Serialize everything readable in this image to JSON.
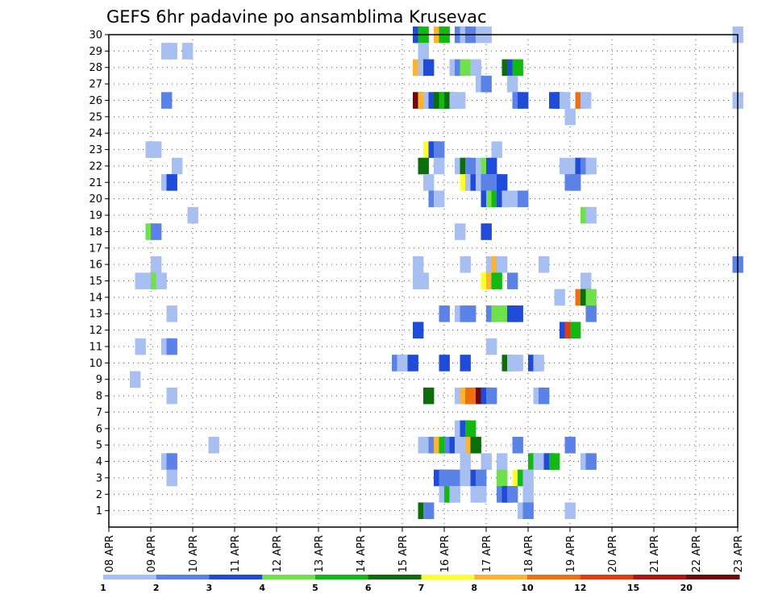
{
  "chart_data": {
    "type": "heatmap",
    "title": "GEFS 6hr padavine po ansamblima Krusevac",
    "xlabel": "",
    "ylabel": "",
    "x_tick_labels": [
      "08 APR",
      "09 APR",
      "10 APR",
      "11 APR",
      "12 APR",
      "13 APR",
      "14 APR",
      "15 APR",
      "16 APR",
      "17 APR",
      "18 APR",
      "19 APR",
      "20 APR",
      "21 APR",
      "22 APR",
      "23 APR"
    ],
    "x_range_days": [
      0,
      15
    ],
    "y_tick_labels": [
      "1",
      "2",
      "3",
      "4",
      "5",
      "6",
      "7",
      "8",
      "9",
      "10",
      "11",
      "12",
      "13",
      "14",
      "15",
      "16",
      "17",
      "18",
      "19",
      "20",
      "21",
      "22",
      "23",
      "24",
      "25",
      "26",
      "27",
      "28",
      "29",
      "30"
    ],
    "y_range": [
      0,
      30
    ],
    "grid": true,
    "colorbar": {
      "labels": [
        "1",
        "2",
        "3",
        "4",
        "5",
        "6",
        "7",
        "8",
        "10",
        "12",
        "15",
        "20"
      ],
      "colors": [
        "#a8bff2",
        "#5b82e6",
        "#1e4bd8",
        "#6fe24b",
        "#12b912",
        "#0b6e0b",
        "#ffff2b",
        "#ffb431",
        "#f07010",
        "#e03d12",
        "#b21414",
        "#6e0a0a"
      ]
    },
    "cells": [
      {
        "m": 30,
        "t": 14.5,
        "v": 3
      },
      {
        "m": 30,
        "t": 14.75,
        "v": 5
      },
      {
        "m": 30,
        "t": 15.5,
        "v": 8
      },
      {
        "m": 30,
        "t": 15.75,
        "v": 5
      },
      {
        "m": 30,
        "t": 16.5,
        "v": 2
      },
      {
        "m": 30,
        "t": 16.75,
        "v": 1
      },
      {
        "m": 30,
        "t": 17,
        "v": 2
      },
      {
        "m": 30,
        "t": 17.5,
        "v": 1
      },
      {
        "m": 30,
        "t": 17.75,
        "v": 1
      },
      {
        "m": 30,
        "t": 29.75,
        "v": 1
      },
      {
        "m": 29,
        "t": 2.5,
        "v": 1
      },
      {
        "m": 29,
        "t": 2.75,
        "v": 1
      },
      {
        "m": 29,
        "t": 3.5,
        "v": 1
      },
      {
        "m": 29,
        "t": 14.75,
        "v": 1
      },
      {
        "m": 28,
        "t": 14.5,
        "v": 8
      },
      {
        "m": 28,
        "t": 14.75,
        "v": 1
      },
      {
        "m": 28,
        "t": 15,
        "v": 3
      },
      {
        "m": 28,
        "t": 16.25,
        "v": 1
      },
      {
        "m": 28,
        "t": 16.5,
        "v": 2
      },
      {
        "m": 28,
        "t": 16.75,
        "v": 4
      },
      {
        "m": 28,
        "t": 17.25,
        "v": 1
      },
      {
        "m": 28,
        "t": 18.75,
        "v": 6
      },
      {
        "m": 28,
        "t": 19,
        "v": 3
      },
      {
        "m": 28,
        "t": 19.25,
        "v": 5
      },
      {
        "m": 27,
        "t": 17.5,
        "v": 1
      },
      {
        "m": 27,
        "t": 17.75,
        "v": 2
      },
      {
        "m": 27,
        "t": 19,
        "v": 1
      },
      {
        "m": 26,
        "t": 2.5,
        "v": 2
      },
      {
        "m": 26,
        "t": 14.5,
        "v": 20
      },
      {
        "m": 26,
        "t": 14.75,
        "v": 8
      },
      {
        "m": 26,
        "t": 15,
        "v": 1
      },
      {
        "m": 26,
        "t": 15.25,
        "v": 3
      },
      {
        "m": 26,
        "t": 15.5,
        "v": 6
      },
      {
        "m": 26,
        "t": 15.75,
        "v": 5
      },
      {
        "m": 26,
        "t": 16,
        "v": 6
      },
      {
        "m": 26,
        "t": 16.25,
        "v": 1
      },
      {
        "m": 26,
        "t": 16.5,
        "v": 1
      },
      {
        "m": 26,
        "t": 19.25,
        "v": 2
      },
      {
        "m": 26,
        "t": 19.5,
        "v": 3
      },
      {
        "m": 26,
        "t": 21,
        "v": 3
      },
      {
        "m": 26,
        "t": 21.25,
        "v": 3
      },
      {
        "m": 26,
        "t": 21.5,
        "v": 1
      },
      {
        "m": 26,
        "t": 22.25,
        "v": 10
      },
      {
        "m": 26,
        "t": 22.5,
        "v": 1
      },
      {
        "m": 26,
        "t": 29.75,
        "v": 1
      },
      {
        "m": 25,
        "t": 21.75,
        "v": 1
      },
      {
        "m": 23,
        "t": 1.75,
        "v": 1
      },
      {
        "m": 23,
        "t": 2,
        "v": 1
      },
      {
        "m": 23,
        "t": 15,
        "v": 7
      },
      {
        "m": 23,
        "t": 15.25,
        "v": 3
      },
      {
        "m": 23,
        "t": 15.5,
        "v": 2
      },
      {
        "m": 23,
        "t": 18.25,
        "v": 1
      },
      {
        "m": 22,
        "t": 3,
        "v": 1
      },
      {
        "m": 22,
        "t": 14.75,
        "v": 6
      },
      {
        "m": 22,
        "t": 15.5,
        "v": 1
      },
      {
        "m": 22,
        "t": 16.5,
        "v": 1
      },
      {
        "m": 22,
        "t": 16.75,
        "v": 6
      },
      {
        "m": 22,
        "t": 17,
        "v": 2
      },
      {
        "m": 22,
        "t": 17.5,
        "v": 1
      },
      {
        "m": 22,
        "t": 17.75,
        "v": 4
      },
      {
        "m": 22,
        "t": 18,
        "v": 3
      },
      {
        "m": 22,
        "t": 21.5,
        "v": 1
      },
      {
        "m": 22,
        "t": 22,
        "v": 1
      },
      {
        "m": 22,
        "t": 22.25,
        "v": 3
      },
      {
        "m": 22,
        "t": 22.5,
        "v": 2
      },
      {
        "m": 22,
        "t": 22.75,
        "v": 1
      },
      {
        "m": 21,
        "t": 2.5,
        "v": 1
      },
      {
        "m": 21,
        "t": 2.75,
        "v": 3
      },
      {
        "m": 21,
        "t": 15,
        "v": 1
      },
      {
        "m": 21,
        "t": 16.75,
        "v": 7
      },
      {
        "m": 21,
        "t": 17,
        "v": 1
      },
      {
        "m": 21,
        "t": 17.25,
        "v": 3
      },
      {
        "m": 21,
        "t": 17.5,
        "v": 1
      },
      {
        "m": 21,
        "t": 17.75,
        "v": 2
      },
      {
        "m": 21,
        "t": 18,
        "v": 2
      },
      {
        "m": 21,
        "t": 18.25,
        "v": 2
      },
      {
        "m": 21,
        "t": 18.5,
        "v": 3
      },
      {
        "m": 21,
        "t": 21.75,
        "v": 2
      },
      {
        "m": 21,
        "t": 22,
        "v": 2
      },
      {
        "m": 20,
        "t": 15.25,
        "v": 2
      },
      {
        "m": 20,
        "t": 15.5,
        "v": 1
      },
      {
        "m": 20,
        "t": 17.75,
        "v": 3
      },
      {
        "m": 20,
        "t": 18,
        "v": 4
      },
      {
        "m": 20,
        "t": 18.25,
        "v": 5
      },
      {
        "m": 20,
        "t": 18.5,
        "v": 3
      },
      {
        "m": 20,
        "t": 18.75,
        "v": 1
      },
      {
        "m": 20,
        "t": 19,
        "v": 1
      },
      {
        "m": 20,
        "t": 19.25,
        "v": 1
      },
      {
        "m": 20,
        "t": 19.5,
        "v": 2
      },
      {
        "m": 19,
        "t": 3.75,
        "v": 1
      },
      {
        "m": 19,
        "t": 22.5,
        "v": 4
      },
      {
        "m": 19,
        "t": 22.75,
        "v": 1
      },
      {
        "m": 18,
        "t": 1.75,
        "v": 4
      },
      {
        "m": 18,
        "t": 2,
        "v": 2
      },
      {
        "m": 18,
        "t": 16.5,
        "v": 1
      },
      {
        "m": 18,
        "t": 17.75,
        "v": 3
      },
      {
        "m": 16,
        "t": 2,
        "v": 1
      },
      {
        "m": 16,
        "t": 14.5,
        "v": 1
      },
      {
        "m": 16,
        "t": 16.75,
        "v": 1
      },
      {
        "m": 16,
        "t": 18,
        "v": 1
      },
      {
        "m": 16,
        "t": 18.25,
        "v": 8
      },
      {
        "m": 16,
        "t": 18.5,
        "v": 1
      },
      {
        "m": 16,
        "t": 20.5,
        "v": 1
      },
      {
        "m": 16,
        "t": 29.75,
        "v": 2
      },
      {
        "m": 15,
        "t": 1.25,
        "v": 1
      },
      {
        "m": 15,
        "t": 1.75,
        "v": 1
      },
      {
        "m": 15,
        "t": 2,
        "v": 4
      },
      {
        "m": 15,
        "t": 2.25,
        "v": 1
      },
      {
        "m": 15,
        "t": 14.5,
        "v": 1
      },
      {
        "m": 15,
        "t": 14.75,
        "v": 1
      },
      {
        "m": 15,
        "t": 17.75,
        "v": 7
      },
      {
        "m": 15,
        "t": 18,
        "v": 8
      },
      {
        "m": 15,
        "t": 18.25,
        "v": 5
      },
      {
        "m": 15,
        "t": 19,
        "v": 2
      },
      {
        "m": 15,
        "t": 22.5,
        "v": 1
      },
      {
        "m": 14,
        "t": 21.25,
        "v": 1
      },
      {
        "m": 14,
        "t": 22.25,
        "v": 10
      },
      {
        "m": 14,
        "t": 22.5,
        "v": 6
      },
      {
        "m": 14,
        "t": 22.75,
        "v": 4
      },
      {
        "m": 13,
        "t": 2.75,
        "v": 1
      },
      {
        "m": 13,
        "t": 15.75,
        "v": 2
      },
      {
        "m": 13,
        "t": 16.5,
        "v": 1
      },
      {
        "m": 13,
        "t": 16.75,
        "v": 2
      },
      {
        "m": 13,
        "t": 17,
        "v": 2
      },
      {
        "m": 13,
        "t": 18,
        "v": 2
      },
      {
        "m": 13,
        "t": 18.25,
        "v": 4
      },
      {
        "m": 13,
        "t": 18.75,
        "v": 4
      },
      {
        "m": 13,
        "t": 19,
        "v": 3
      },
      {
        "m": 13,
        "t": 19.25,
        "v": 3
      },
      {
        "m": 13,
        "t": 22.75,
        "v": 2
      },
      {
        "m": 12,
        "t": 14.5,
        "v": 3
      },
      {
        "m": 12,
        "t": 21.5,
        "v": 3
      },
      {
        "m": 12,
        "t": 21.75,
        "v": 12
      },
      {
        "m": 12,
        "t": 22,
        "v": 5
      },
      {
        "m": 11,
        "t": 1.25,
        "v": 1
      },
      {
        "m": 11,
        "t": 2.5,
        "v": 1
      },
      {
        "m": 11,
        "t": 2.75,
        "v": 2
      },
      {
        "m": 11,
        "t": 18,
        "v": 1
      },
      {
        "m": 10,
        "t": 13.5,
        "v": 2
      },
      {
        "m": 10,
        "t": 13.75,
        "v": 1
      },
      {
        "m": 10,
        "t": 14,
        "v": 1
      },
      {
        "m": 10,
        "t": 14.25,
        "v": 3
      },
      {
        "m": 10,
        "t": 15.75,
        "v": 3
      },
      {
        "m": 10,
        "t": 16.75,
        "v": 3
      },
      {
        "m": 10,
        "t": 18.75,
        "v": 6
      },
      {
        "m": 10,
        "t": 19,
        "v": 1
      },
      {
        "m": 10,
        "t": 19.25,
        "v": 1
      },
      {
        "m": 10,
        "t": 20,
        "v": 3
      },
      {
        "m": 10,
        "t": 20.25,
        "v": 1
      },
      {
        "m": 9,
        "t": 1,
        "v": 1
      },
      {
        "m": 8,
        "t": 2.75,
        "v": 1
      },
      {
        "m": 8,
        "t": 15,
        "v": 6
      },
      {
        "m": 8,
        "t": 16.5,
        "v": 1
      },
      {
        "m": 8,
        "t": 16.75,
        "v": 8
      },
      {
        "m": 8,
        "t": 17,
        "v": 10
      },
      {
        "m": 8,
        "t": 17.25,
        "v": 10
      },
      {
        "m": 8,
        "t": 17.5,
        "v": 20
      },
      {
        "m": 8,
        "t": 17.75,
        "v": 3
      },
      {
        "m": 8,
        "t": 18,
        "v": 2
      },
      {
        "m": 8,
        "t": 20.25,
        "v": 1
      },
      {
        "m": 8,
        "t": 20.5,
        "v": 2
      },
      {
        "m": 6,
        "t": 16.5,
        "v": 1
      },
      {
        "m": 6,
        "t": 16.75,
        "v": 3
      },
      {
        "m": 6,
        "t": 17,
        "v": 5
      },
      {
        "m": 5,
        "t": 4.75,
        "v": 1
      },
      {
        "m": 5,
        "t": 14.75,
        "v": 1
      },
      {
        "m": 5,
        "t": 15.25,
        "v": 2
      },
      {
        "m": 5,
        "t": 15.5,
        "v": 8
      },
      {
        "m": 5,
        "t": 15.75,
        "v": 5
      },
      {
        "m": 5,
        "t": 16,
        "v": 2
      },
      {
        "m": 5,
        "t": 16.25,
        "v": 3
      },
      {
        "m": 5,
        "t": 16.5,
        "v": 1
      },
      {
        "m": 5,
        "t": 17,
        "v": 8
      },
      {
        "m": 5,
        "t": 17.25,
        "v": 6
      },
      {
        "m": 5,
        "t": 19.25,
        "v": 2
      },
      {
        "m": 5,
        "t": 21.75,
        "v": 2
      },
      {
        "m": 4,
        "t": 2.5,
        "v": 1
      },
      {
        "m": 4,
        "t": 2.75,
        "v": 2
      },
      {
        "m": 4,
        "t": 16.75,
        "v": 1
      },
      {
        "m": 4,
        "t": 17.75,
        "v": 1
      },
      {
        "m": 4,
        "t": 18.5,
        "v": 1
      },
      {
        "m": 4,
        "t": 20,
        "v": 5
      },
      {
        "m": 4,
        "t": 20.25,
        "v": 1
      },
      {
        "m": 4,
        "t": 20.5,
        "v": 1
      },
      {
        "m": 4,
        "t": 20.75,
        "v": 3
      },
      {
        "m": 4,
        "t": 21,
        "v": 5
      },
      {
        "m": 4,
        "t": 22.5,
        "v": 1
      },
      {
        "m": 4,
        "t": 22.75,
        "v": 2
      },
      {
        "m": 3,
        "t": 2.75,
        "v": 1
      },
      {
        "m": 3,
        "t": 15.5,
        "v": 3
      },
      {
        "m": 3,
        "t": 15.75,
        "v": 2
      },
      {
        "m": 3,
        "t": 16,
        "v": 2
      },
      {
        "m": 3,
        "t": 16.25,
        "v": 2
      },
      {
        "m": 3,
        "t": 16.75,
        "v": 1
      },
      {
        "m": 3,
        "t": 17.25,
        "v": 3
      },
      {
        "m": 3,
        "t": 17.5,
        "v": 2
      },
      {
        "m": 3,
        "t": 18.5,
        "v": 4
      },
      {
        "m": 3,
        "t": 19.25,
        "v": 7
      },
      {
        "m": 3,
        "t": 19.5,
        "v": 5
      },
      {
        "m": 3,
        "t": 19.75,
        "v": 1
      },
      {
        "m": 2,
        "t": 15.75,
        "v": 1
      },
      {
        "m": 2,
        "t": 16,
        "v": 5
      },
      {
        "m": 2,
        "t": 16.25,
        "v": 1
      },
      {
        "m": 2,
        "t": 17.25,
        "v": 1
      },
      {
        "m": 2,
        "t": 17.5,
        "v": 1
      },
      {
        "m": 2,
        "t": 18.5,
        "v": 2
      },
      {
        "m": 2,
        "t": 18.75,
        "v": 3
      },
      {
        "m": 2,
        "t": 19,
        "v": 2
      },
      {
        "m": 2,
        "t": 19.75,
        "v": 1
      },
      {
        "m": 1,
        "t": 14.75,
        "v": 6
      },
      {
        "m": 1,
        "t": 15,
        "v": 2
      },
      {
        "m": 1,
        "t": 19.5,
        "v": 1
      },
      {
        "m": 1,
        "t": 19.75,
        "v": 2
      },
      {
        "m": 1,
        "t": 21.75,
        "v": 1
      }
    ]
  }
}
